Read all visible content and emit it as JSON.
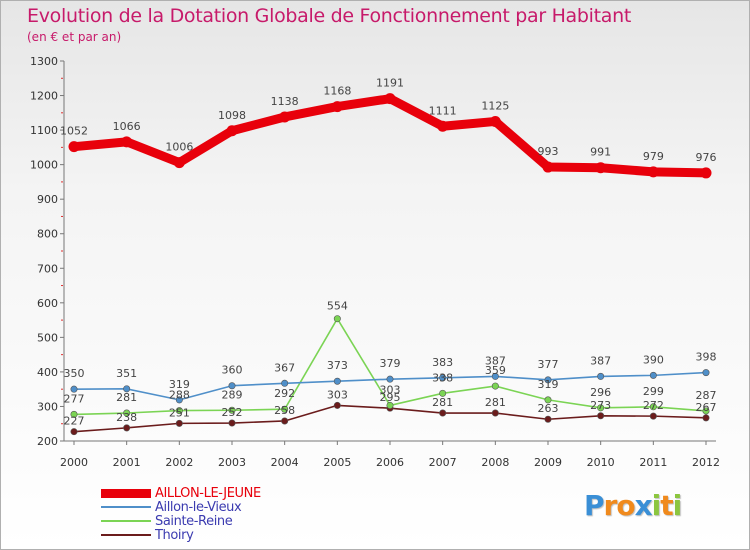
{
  "chart_data": {
    "type": "line",
    "title": "Evolution de la Dotation Globale de Fonctionnement par Habitant",
    "subtitle": "(en € et par an)",
    "xlabel": "",
    "ylabel": "",
    "categories": [
      "2000",
      "2001",
      "2002",
      "2003",
      "2004",
      "2005",
      "2006",
      "2007",
      "2008",
      "2009",
      "2010",
      "2011",
      "2012"
    ],
    "yticks": [
      "200",
      "300",
      "400",
      "500",
      "600",
      "700",
      "800",
      "900",
      "1000",
      "1100",
      "1200",
      "1300"
    ],
    "ylim": [
      200,
      1300
    ],
    "grid": false,
    "legend_position": "bottom-left",
    "series": [
      {
        "name": "AILLON-LE-JEUNE",
        "color": "#e8000b",
        "values": [
          1052,
          1066,
          1006,
          1098,
          1138,
          1168,
          1191,
          1111,
          1125,
          993,
          991,
          979,
          976
        ],
        "labels": [
          "1052",
          "1066",
          "1006",
          "1098",
          "1138",
          "1168",
          "1191",
          "1111",
          "1125",
          "993",
          "991",
          "979",
          "976"
        ]
      },
      {
        "name": "Aillon-le-Vieux",
        "color": "#4f8fc9",
        "values": [
          350,
          351,
          319,
          360,
          367,
          373,
          379,
          383,
          387,
          377,
          387,
          390,
          398
        ],
        "labels": [
          "350",
          "351",
          "319",
          "360",
          "367",
          "373",
          "379",
          "383",
          "387",
          "377",
          "387",
          "390",
          "398"
        ]
      },
      {
        "name": "Sainte-Reine",
        "color": "#7bd454",
        "values": [
          277,
          281,
          288,
          289,
          292,
          554,
          303,
          338,
          359,
          319,
          296,
          299,
          287
        ],
        "labels": [
          "277",
          "281",
          "288",
          "289",
          "292",
          "554",
          "303",
          "338",
          "359",
          "319",
          "296",
          "299",
          "287"
        ]
      },
      {
        "name": "Thoiry",
        "color": "#6b1c1c",
        "values": [
          227,
          238,
          251,
          252,
          258,
          303,
          295,
          281,
          281,
          263,
          273,
          272,
          267
        ],
        "labels": [
          "227",
          "238",
          "251",
          "252",
          "258",
          "303",
          "295",
          "281",
          "281",
          "263",
          "273",
          "272",
          "267"
        ]
      }
    ]
  },
  "logo": {
    "letters": [
      "P",
      "r",
      "o",
      "x",
      "i",
      "t",
      "i"
    ],
    "colors": [
      "#3a8fd6",
      "#f08a1d",
      "#f08a1d",
      "#3a8fd6",
      "#8cc63f",
      "#f08a1d",
      "#8cc63f"
    ]
  }
}
